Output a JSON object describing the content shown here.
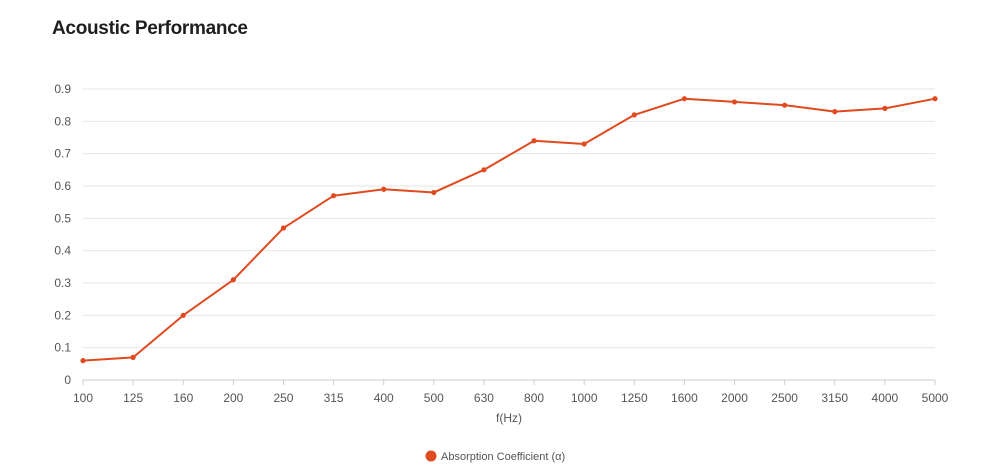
{
  "title": "Acoustic Performance",
  "colors": {
    "series": "#e04a1f",
    "grid": "#e6e6e6",
    "axis": "#cccccc",
    "text": "#555555"
  },
  "chart_data": {
    "type": "line",
    "title": "Acoustic Performance",
    "xlabel": "f(Hz)",
    "ylabel": "",
    "categories": [
      "100",
      "125",
      "160",
      "200",
      "250",
      "315",
      "400",
      "500",
      "630",
      "800",
      "1000",
      "1250",
      "1600",
      "2000",
      "2500",
      "3150",
      "4000",
      "5000"
    ],
    "ylim": [
      0,
      0.9
    ],
    "yticks": [
      "0",
      "0.1",
      "0.2",
      "0.3",
      "0.4",
      "0.5",
      "0.6",
      "0.7",
      "0.8",
      "0.9"
    ],
    "grid": true,
    "legend_position": "bottom-center",
    "series": [
      {
        "name": "Absorption Coefficient (α)",
        "color": "#e04a1f",
        "values": [
          0.06,
          0.07,
          0.2,
          0.31,
          0.47,
          0.57,
          0.59,
          0.58,
          0.65,
          0.74,
          0.73,
          0.82,
          0.87,
          0.86,
          0.85,
          0.83,
          0.84,
          0.87
        ]
      }
    ]
  }
}
